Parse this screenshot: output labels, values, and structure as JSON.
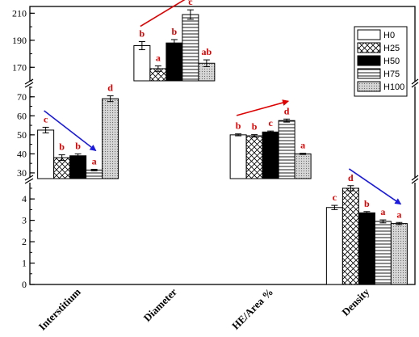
{
  "chart_data": {
    "type": "bar",
    "categories": [
      "Interstitium",
      "Diameter",
      "HE/Area %",
      "Density"
    ],
    "series": [
      {
        "name": "H0",
        "values": [
          52.5,
          186,
          50,
          3.6
        ],
        "errors": [
          1.5,
          3,
          0.5,
          0.1
        ],
        "pattern": "white"
      },
      {
        "name": "H25",
        "values": [
          38,
          169,
          49.5,
          4.5
        ],
        "errors": [
          1.5,
          2,
          0.6,
          0.12
        ],
        "pattern": "crosshatch"
      },
      {
        "name": "H50",
        "values": [
          39,
          188,
          51.5,
          3.35
        ],
        "errors": [
          1,
          2.5,
          0.5,
          0.06
        ],
        "pattern": "black"
      },
      {
        "name": "H75",
        "values": [
          31.5,
          209,
          57.5,
          2.95
        ],
        "errors": [
          0.4,
          3.5,
          0.8,
          0.07
        ],
        "pattern": "hlines"
      },
      {
        "name": "H100",
        "values": [
          69,
          173,
          40,
          2.85
        ],
        "errors": [
          1.5,
          2.5,
          0.3,
          0.05
        ],
        "pattern": "dots"
      }
    ],
    "significance": [
      [
        "c",
        "b",
        "b",
        "a",
        "d"
      ],
      [
        "b",
        "a",
        "b",
        "c",
        "ab"
      ],
      [
        "b",
        "b",
        "c",
        "d",
        "a"
      ],
      [
        "c",
        "d",
        "b",
        "a",
        "a"
      ]
    ],
    "y_segments": [
      {
        "range": [
          0,
          4.8
        ],
        "ticks": [
          0,
          1,
          2,
          3,
          4
        ]
      },
      {
        "range": [
          27,
          75
        ],
        "ticks": [
          30,
          40,
          50,
          60,
          70
        ]
      },
      {
        "range": [
          160,
          215
        ],
        "ticks": [
          170,
          190,
          210
        ]
      }
    ],
    "segment_map": [
      1,
      2,
      1,
      0
    ],
    "annotation_colors": {
      "significance": "#e00000",
      "arrow_up": "#e00000",
      "arrow_down": "#1a1ae0"
    },
    "legend_placement": "top-right"
  }
}
